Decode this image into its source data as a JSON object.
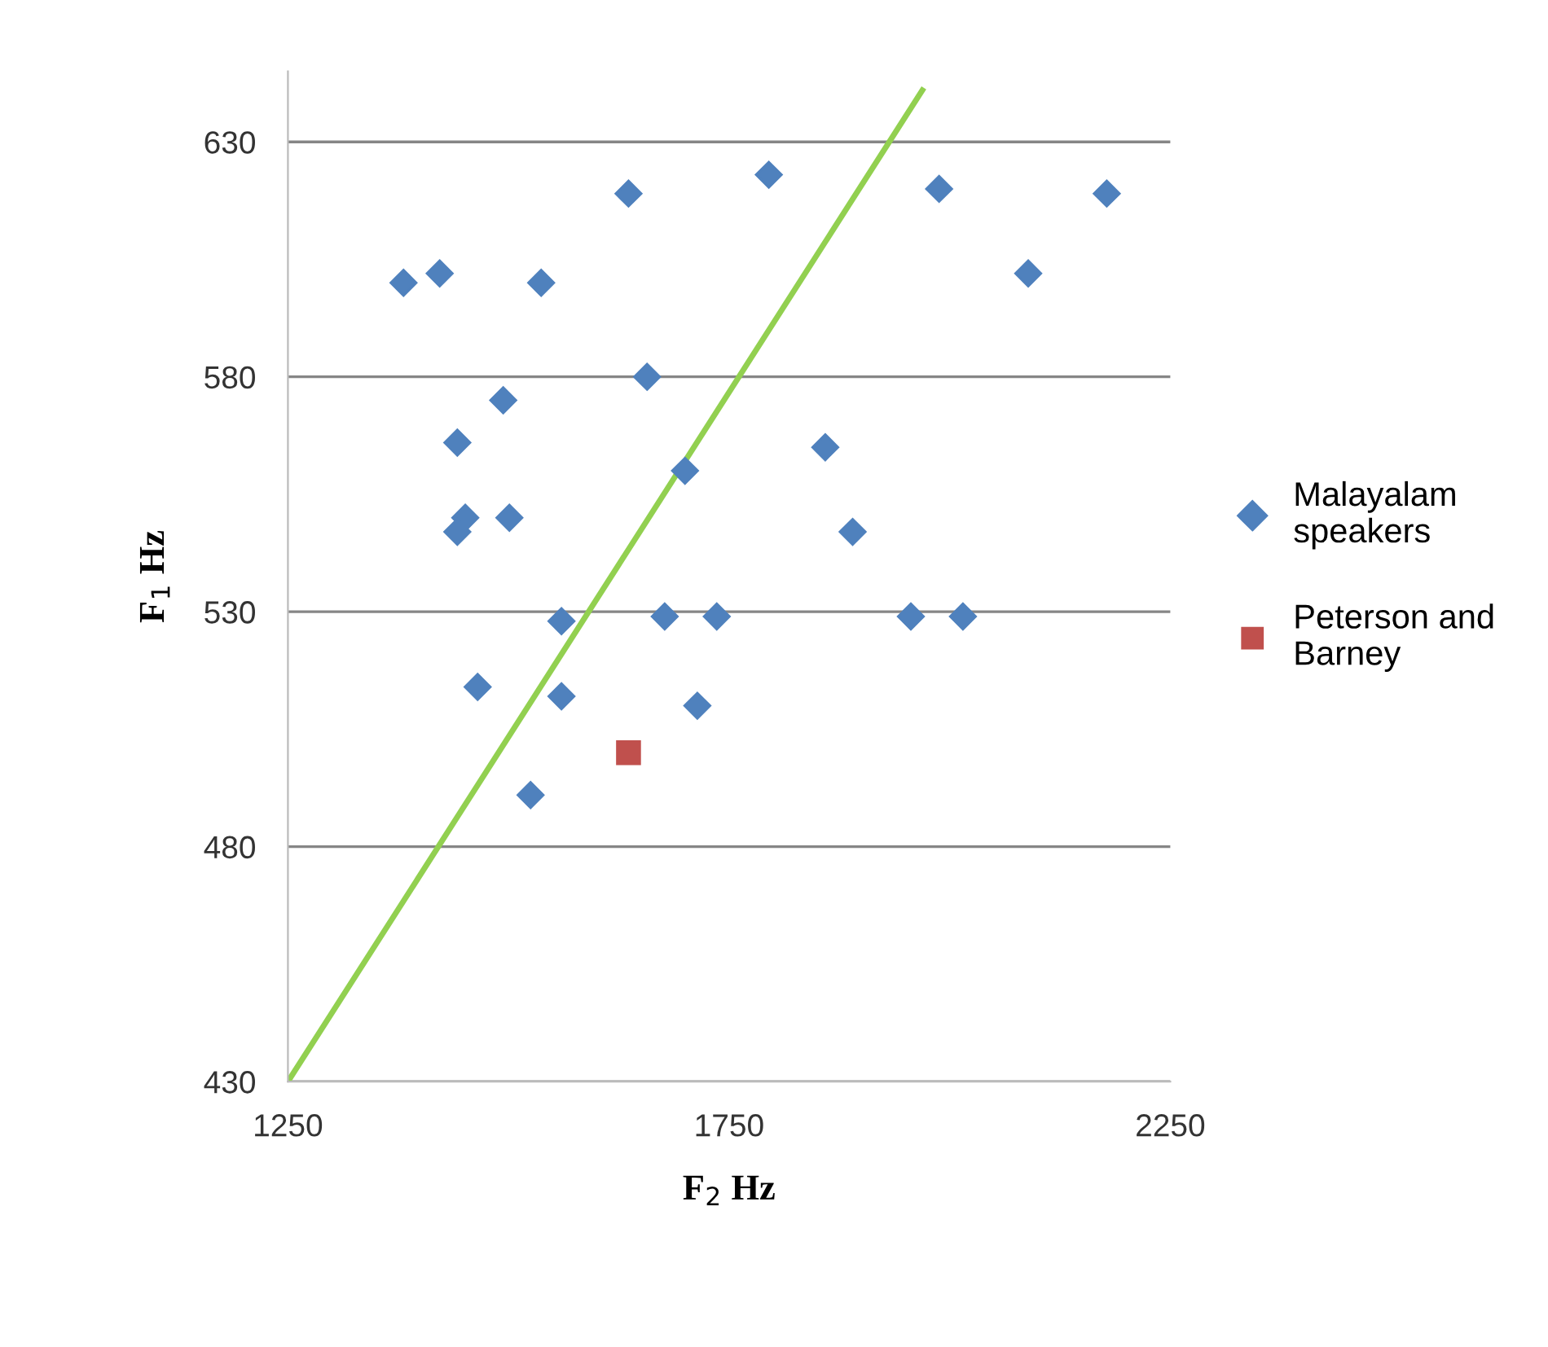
{
  "chart_data": {
    "type": "scatter",
    "xlabel": "F$_{2}$ Hz",
    "ylabel": "F$_{1}$ Hz",
    "xlim": [
      1250,
      2250
    ],
    "ylim": [
      430,
      645
    ],
    "xticks": [
      1250,
      1750,
      2250
    ],
    "yticks": [
      430,
      480,
      530,
      580,
      630
    ],
    "grid": "y",
    "legend": "right",
    "series": [
      {
        "name": "Malayalam speakers",
        "color": "#4f81bd",
        "marker": "diamond",
        "x": [
          1381,
          1422,
          1537,
          1636,
          1795,
          1988,
          2178,
          2089,
          1657,
          1494,
          1442,
          1700,
          1859,
          1451,
          1501,
          1442,
          1890,
          1560,
          1677,
          1736,
          1956,
          2015,
          1465,
          1560,
          1714,
          1525
        ],
        "values": [
          600,
          602,
          600,
          619,
          623,
          620,
          619,
          602,
          580,
          575,
          566,
          560,
          565,
          550,
          550,
          547,
          547,
          528,
          529,
          529,
          529,
          529,
          514,
          512,
          510,
          491
        ]
      },
      {
        "name": "Peterson and Barney",
        "color": "#c0504d",
        "marker": "square",
        "x": [
          1636
        ],
        "values": [
          500
        ]
      },
      {
        "type": "line",
        "color": "#92d050",
        "marker": "none",
        "x": [
          1250,
          1969
        ],
        "values": [
          430,
          641
        ]
      }
    ]
  }
}
